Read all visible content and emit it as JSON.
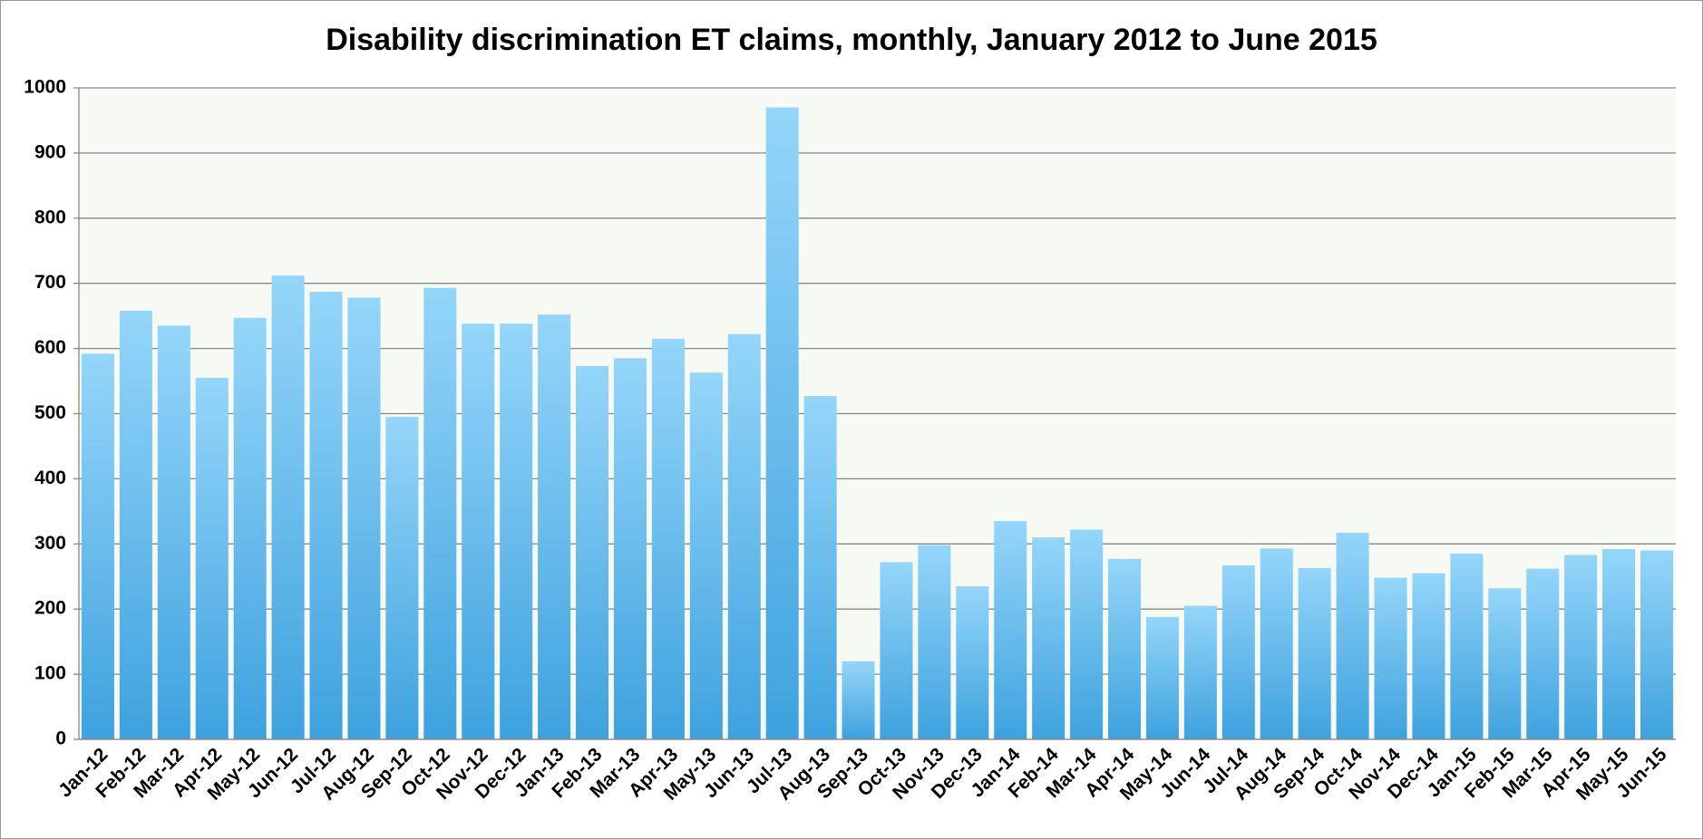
{
  "chart_data": {
    "type": "bar",
    "title": "Disability discrimination ET claims, monthly, January 2012 to June 2015",
    "categories": [
      "Jan-12",
      "Feb-12",
      "Mar-12",
      "Apr-12",
      "May-12",
      "Jun-12",
      "Jul-12",
      "Aug-12",
      "Sep-12",
      "Oct-12",
      "Nov-12",
      "Dec-12",
      "Jan-13",
      "Feb-13",
      "Mar-13",
      "Apr-13",
      "May-13",
      "Jun-13",
      "Jul-13",
      "Aug-13",
      "Sep-13",
      "Oct-13",
      "Nov-13",
      "Dec-13",
      "Jan-14",
      "Feb-14",
      "Mar-14",
      "Apr-14",
      "May-14",
      "Jun-14",
      "Jul-14",
      "Aug-14",
      "Sep-14",
      "Oct-14",
      "Nov-14",
      "Dec-14",
      "Jan-15",
      "Feb-15",
      "Mar-15",
      "Apr-15",
      "May-15",
      "Jun-15"
    ],
    "values": [
      592,
      658,
      635,
      555,
      647,
      712,
      687,
      678,
      495,
      693,
      638,
      638,
      652,
      573,
      585,
      615,
      563,
      622,
      970,
      527,
      120,
      272,
      298,
      235,
      335,
      310,
      322,
      277,
      188,
      205,
      267,
      293,
      263,
      317,
      248,
      255,
      285,
      232,
      262,
      283,
      292,
      290
    ],
    "color": "#3ea2de",
    "ylim": [
      0,
      1000
    ],
    "yticks": [
      0,
      100,
      200,
      300,
      400,
      500,
      600,
      700,
      800,
      900,
      1000
    ],
    "grid": true
  }
}
